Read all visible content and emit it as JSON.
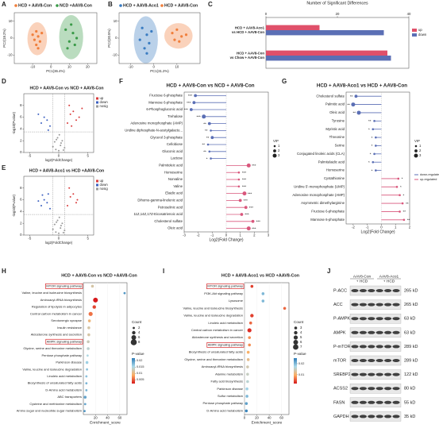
{
  "chart_data": [
    {
      "type": "scatter",
      "panel": "A",
      "ellipse": true,
      "legend": "top",
      "xlabel": "PC1(36.4%)",
      "ylabel": "PC2(18.2%)",
      "xlim": [
        -20,
        25
      ],
      "xticks": [
        -10,
        0,
        10,
        20
      ],
      "ylim": [
        -15,
        15
      ],
      "yticks": [
        -10,
        0,
        10
      ],
      "series": [
        {
          "name": "HCD + AAV8-Con",
          "color": "#f07f3c",
          "x": [
            -10,
            -8,
            -9,
            -7,
            -6,
            -8,
            -5,
            -7
          ],
          "y": [
            2,
            4,
            -1,
            1,
            -2,
            -4,
            3,
            -6
          ]
        },
        {
          "name": "NCD +AAV8-Con",
          "color": "#3a9a48",
          "x": [
            8,
            12,
            10,
            14,
            9,
            11,
            13
          ],
          "y": [
            5,
            3,
            -2,
            0,
            -6,
            8,
            -4
          ]
        }
      ]
    },
    {
      "type": "scatter",
      "panel": "B",
      "ellipse": true,
      "legend": "top",
      "xlabel": "PC1(31.2%)",
      "ylabel": "PC2(20.5%)",
      "xlim": [
        -15,
        20
      ],
      "xticks": [
        -10,
        0,
        10
      ],
      "ylim": [
        -15,
        15
      ],
      "yticks": [
        -10,
        0,
        10
      ],
      "series": [
        {
          "name": "HCD + AAV8-Aco1",
          "color": "#3a7cc1",
          "x": [
            -5,
            -3,
            -6,
            -2,
            -4,
            -1,
            -3
          ],
          "y": [
            6,
            2,
            -1,
            -3,
            -6,
            4,
            -9
          ]
        },
        {
          "name": "HCD + AAV8-Con",
          "color": "#f07f3c",
          "x": [
            8,
            10,
            12,
            9,
            14,
            11
          ],
          "y": [
            3,
            5,
            1,
            -1,
            2,
            -2
          ]
        }
      ]
    },
    {
      "type": "bar",
      "panel": "C",
      "title": "Number of Significant Differences",
      "categories": [
        [
          "HCD + AAV8-Aco1",
          "vs HCD + AAV8-Con"
        ],
        [
          "HCD + AAV8-Con",
          "vs Chow + AAV8-Con"
        ]
      ],
      "xlim": [
        0,
        40
      ],
      "xticks": [
        0,
        20,
        40
      ],
      "series": [
        {
          "name": "up",
          "color": "#e0506a",
          "values": [
            15,
            34
          ]
        },
        {
          "name": "down",
          "color": "#5b6fb5",
          "values": [
            33,
            35
          ]
        }
      ]
    },
    {
      "type": "scatter",
      "panel": "D",
      "title": "HCD + AAV8-Con vs NCD + AAV8-Con",
      "legend": "right",
      "xlabel": "log2(FoldChange)",
      "ylabel": "-log10(Pvalue)",
      "xlim": [
        -6,
        6
      ],
      "xticks": [
        -5,
        0,
        5
      ],
      "ylim": [
        0,
        10
      ],
      "yticks": [
        0,
        2,
        4,
        6,
        8
      ],
      "series": [
        {
          "name": "up",
          "color": "#d93b3b",
          "x": [
            1.5,
            2,
            2.5,
            3,
            1.8,
            3.5,
            2.2,
            4
          ],
          "y": [
            5,
            6.5,
            7,
            5.5,
            8,
            6,
            4.5,
            7.5
          ]
        },
        {
          "name": "down",
          "color": "#3b5fc0",
          "x": [
            -1.5,
            -2,
            -2.5,
            -3,
            -1.8,
            -3.5
          ],
          "y": [
            4.5,
            5.5,
            6,
            5,
            3.8,
            6.5
          ]
        },
        {
          "name": "nosig",
          "color": "#999999",
          "x": [
            -1,
            -0.5,
            0,
            0.3,
            0.6,
            1,
            -0.2,
            0.4,
            -0.7,
            0.8,
            0.1,
            -0.4
          ],
          "y": [
            1,
            0.5,
            0.3,
            1.2,
            2,
            0.8,
            2.5,
            1.6,
            1.8,
            0.4,
            3,
            2.2
          ]
        }
      ]
    },
    {
      "type": "scatter",
      "panel": "E",
      "title": "HCD + AAV8-Aco1 vs HCD +AAV8-Con",
      "legend": "right",
      "xlabel": "log2(FoldChange)",
      "ylabel": "-log10(Pvalue)",
      "xlim": [
        -6,
        6
      ],
      "xticks": [
        -5,
        0,
        5
      ],
      "ylim": [
        0,
        10
      ],
      "yticks": [
        0,
        2,
        4,
        6,
        8
      ],
      "series": [
        {
          "name": "up",
          "color": "#d93b3b",
          "x": [
            1.5,
            2,
            2.5,
            3,
            1.8,
            3.2
          ],
          "y": [
            5,
            6.5,
            7,
            5.5,
            8,
            6
          ]
        },
        {
          "name": "down",
          "color": "#3b5fc0",
          "x": [
            -1.5,
            -2,
            -2.5,
            -3,
            -1.8,
            -2.8,
            -3.5
          ],
          "y": [
            4.5,
            5.5,
            6,
            5,
            7,
            6.8,
            5.8
          ]
        },
        {
          "name": "nosig",
          "color": "#999999",
          "x": [
            -1,
            -0.5,
            0,
            0.3,
            0.6,
            1,
            -0.2,
            0.4,
            -0.7,
            0.8,
            0.1,
            -0.4
          ],
          "y": [
            1,
            0.5,
            0.3,
            1.2,
            2,
            0.8,
            2.5,
            1.6,
            1.8,
            0.4,
            3,
            2.2
          ]
        }
      ]
    },
    {
      "type": "lollipop",
      "panel": "F",
      "title": "HCD + AAV8-Con vs NCD + AAV8-Con",
      "xlabel": "Log2(Fold Change)",
      "down_color": "#5b6fb5",
      "up_color": "#d9577c",
      "xlim": [
        -3,
        3
      ],
      "xticks": [
        -3,
        -2,
        -1,
        0,
        1,
        2,
        3
      ],
      "vip_legend": {
        "title": "VIP",
        "values": [
          1,
          2,
          3
        ]
      },
      "categories": [
        "Fructose 6-phosphate",
        "Mannose 6-phosphate",
        "6-Phosphogluconic acid",
        "Trehalose",
        "Adenosine monophosphate (AMP)",
        "Uridine diphosphate-N-acetylgalacto...",
        "Glycerol 3-phosphate",
        "Cellobiose",
        "Gluconic acid",
        "Lactose",
        "Palmitoleic acid",
        "Homoserine",
        "Norvaline",
        "Valine",
        "Elaidic acid",
        "Dihomo-gamma-linolenic acid",
        "Petroselinic acid",
        "11Z,14Z,17Z-Eicosatrienoic acid",
        "Cholesterol sulfate",
        "Oleic acid"
      ],
      "values": [
        -2.2,
        -2.3,
        -2.5,
        -1.6,
        -1.2,
        -1.1,
        -1.0,
        -1.3,
        -1.2,
        -1.1,
        1.6,
        0.9,
        0.9,
        0.9,
        1.3,
        1.0,
        1.4,
        1.1,
        1.9,
        1.6
      ],
      "vip": [
        2,
        2,
        2,
        3,
        2,
        1,
        2,
        1,
        1,
        1,
        3,
        1,
        1,
        1,
        3,
        2,
        2,
        2,
        2,
        3
      ],
      "stars": [
        "***",
        "***",
        "***",
        "***",
        "**",
        "**",
        "**",
        "**",
        "**",
        "*",
        "***",
        "***",
        "***",
        "***",
        "***",
        "***",
        "***",
        "***",
        "***",
        "***"
      ]
    },
    {
      "type": "lollipop",
      "panel": "G",
      "title": "HCD + AAV8-Aco1 vs HCD + AAV8-Con",
      "xlabel": "Log2(Fold Change)",
      "down_color": "#5b6fb5",
      "up_color": "#d9577c",
      "legend_labels": [
        "down-regulated",
        "up-regulated"
      ],
      "xlim": [
        -2.5,
        2
      ],
      "xticks": [
        -2,
        -1,
        0,
        1,
        2
      ],
      "vip_legend": {
        "title": "VIP",
        "values": [
          1,
          2,
          3
        ]
      },
      "categories": [
        "Cholesterol sulfate",
        "Palmitic acid",
        "Oleic acid",
        "Tyrosine",
        "Myristic acid",
        "Threonine",
        "Serine",
        "Conjugated linoleic acids (CLA)",
        "Palmitelaidic acid",
        "Homoserine",
        "Cystathionine",
        "Uridine 5'-monophosphate (UMP)",
        "Adenosine monophosphate (AMP)",
        "Asymmetric dimethylarginine",
        "Fructose 6-phosphate",
        "Mannose 6-phosphate"
      ],
      "values": [
        -1.8,
        -2.0,
        -1.6,
        -0.5,
        -0.6,
        -0.4,
        -0.4,
        -0.5,
        -0.6,
        -0.4,
        1.2,
        1.1,
        1.3,
        1.5,
        1.3,
        1.6
      ],
      "vip": [
        2,
        3,
        3,
        1,
        1,
        1,
        1,
        1,
        1,
        1,
        1,
        1,
        1,
        1,
        1,
        1
      ],
      "stars": [
        "**",
        "**",
        "**",
        "**",
        "*",
        "*",
        "*",
        "*",
        "*",
        "*",
        "*",
        "*",
        "*",
        "**",
        "**",
        "**"
      ]
    },
    {
      "type": "dot",
      "panel": "H",
      "title": "HCD + AAV8-Con vs NCD +AAV8-Con",
      "xlabel": "Enrichment_score",
      "xlim": [
        0,
        72
      ],
      "xticks": [
        20,
        40,
        60
      ],
      "highlight": [
        0,
        8
      ],
      "colormap": [
        "#d7191c",
        "#fdae61",
        "#abd9e9",
        "#2c7bb6"
      ],
      "plim": [
        0.002,
        0.022
      ],
      "size_legend": {
        "title": "Count",
        "values": [
          2,
          4,
          6,
          8
        ]
      },
      "color_legend": {
        "title": "P-value",
        "ticks": [
          0.005,
          0.01,
          0.015,
          0.02
        ]
      },
      "categories": [
        "MTOR signaling pathway",
        "Valine, leucine and isoleucine biosynthesis",
        "Aminoacyl-tRNA biosynthesis",
        "Regulation of lipolysis in adipocytes",
        "Central carbon metabolism in cancer",
        "Serotonergic synapse",
        "Insulin resistance",
        "Aldosterone synthesis and secretion",
        "AMPK signaling pathway",
        "Glycine, serine and threonine metabolism",
        "Pentose phosphate pathway",
        "Parkinson disease",
        "Valine, leucine and isoleucine degradation",
        "Linoleic acid metabolism",
        "Biosynthesis of unsaturated fatty acids",
        "D-Amino acid metabolism",
        "ABC transporters",
        "Cysteine and methionine metabolism",
        "Amino sugar and nucleotide sugar metabolism"
      ],
      "values": [
        15,
        68,
        20,
        18,
        12,
        10,
        9,
        9,
        8,
        8,
        7,
        6,
        6,
        5,
        5,
        5,
        3,
        3,
        2
      ],
      "count": [
        3,
        2,
        6,
        4,
        5,
        3,
        3,
        3,
        3,
        3,
        2,
        3,
        2,
        2,
        2,
        2,
        3,
        2,
        2
      ],
      "pvalue": [
        0.012,
        0.02,
        0.002,
        0.004,
        0.006,
        0.01,
        0.012,
        0.012,
        0.013,
        0.014,
        0.015,
        0.016,
        0.017,
        0.017,
        0.018,
        0.018,
        0.019,
        0.019,
        0.02
      ]
    },
    {
      "type": "dot",
      "panel": "I",
      "title": "HCD + AAV8-Aco1 vs HCD +AAV8-Con",
      "xlabel": "Enrichment_score",
      "xlim": [
        0,
        72
      ],
      "xticks": [
        0,
        20,
        40,
        60
      ],
      "highlight": [
        0,
        8
      ],
      "colormap": [
        "#d7191c",
        "#fdae61",
        "#abd9e9",
        "#2c7bb6"
      ],
      "plim": [
        0.002,
        0.025
      ],
      "size_legend": {
        "title": "Count",
        "values": [
          3,
          4,
          5,
          6,
          7
        ]
      },
      "color_legend": {
        "title": "P-value",
        "ticks": [
          0.01,
          0.02
        ]
      },
      "categories": [
        "MTOR signaling pathway",
        "PI3K-Akt signaling pathway",
        "Lysosome",
        "Valine, leucine and isoleucine biosynthesis",
        "Valine, leucine and isoleucine degradation",
        "Linoleic acid metabolism",
        "Central carbon metabolism in cancer",
        "Aldosterone synthesis and secretion",
        "AMPK signaling pathway",
        "Biosynthesis of unsaturated fatty acids",
        "Glycine, serine and threonine metabolism",
        "Aminoacyl-tRNA biosynthesis",
        "Alanine metabolism",
        "Fatty acid biosynthesis",
        "Parkinson disease",
        "Sulfur metabolism",
        "Pentose phosphate pathway",
        "D-Amino acid metabolism"
      ],
      "values": [
        12,
        30,
        30,
        65,
        12,
        10,
        8,
        8,
        8,
        6,
        6,
        5,
        5,
        5,
        4,
        4,
        3,
        3
      ],
      "count": [
        3,
        3,
        3,
        3,
        4,
        3,
        5,
        3,
        3,
        3,
        3,
        3,
        3,
        3,
        3,
        3,
        3,
        3
      ],
      "pvalue": [
        0.004,
        0.02,
        0.02,
        0.006,
        0.004,
        0.006,
        0.003,
        0.008,
        0.008,
        0.01,
        0.012,
        0.014,
        0.015,
        0.016,
        0.018,
        0.02,
        0.022,
        0.024
      ]
    }
  ],
  "blot": {
    "panel": "J",
    "groups": [
      "AAV8-Con",
      "AAV8-Aco1"
    ],
    "diet": [
      "+ HCD",
      "+ HCD"
    ],
    "rows": [
      {
        "protein": "P-ACC",
        "size": "265 kD"
      },
      {
        "protein": "ACC",
        "size": "265 kD"
      },
      {
        "protein": "P-AMPK",
        "size": "63 kD"
      },
      {
        "protein": "AMPK",
        "size": "63 kD"
      },
      {
        "protein": "P-mTOR",
        "size": "289 kD"
      },
      {
        "protein": "mTOR",
        "size": "289 kD"
      },
      {
        "protein": "SREBP2",
        "size": "122 kD"
      },
      {
        "protein": "ACSS2",
        "size": "80 kD"
      },
      {
        "protein": "FASN",
        "size": "55 kD"
      },
      {
        "protein": "GAPDH",
        "size": "35 kD"
      }
    ]
  }
}
